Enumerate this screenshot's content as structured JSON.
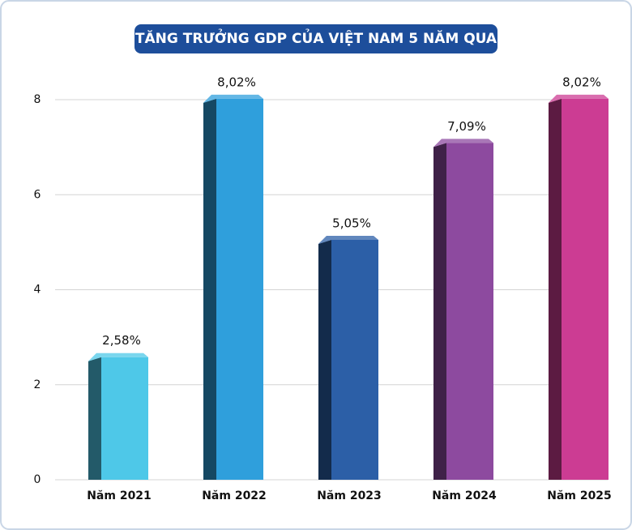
{
  "chart_data": {
    "type": "bar3d",
    "title": "TĂNG TRƯỞNG GDP CỦA VIỆT NAM 5 NĂM QUA",
    "categories": [
      "Năm 2021",
      "Năm 2022",
      "Năm 2023",
      "Năm 2024",
      "Năm 2025"
    ],
    "values": [
      2.58,
      8.02,
      5.05,
      7.09,
      8.02
    ],
    "value_labels": [
      "2,58%",
      "8,02%",
      "5,05%",
      "7,09%",
      "8,02%"
    ],
    "colors": [
      "#4ec8e8",
      "#2f9fdc",
      "#2c5fa7",
      "#8d4a9f",
      "#cc3c93"
    ],
    "ylim": [
      0,
      8
    ],
    "yticks": [
      0,
      2,
      4,
      6,
      8
    ],
    "grid": true
  }
}
